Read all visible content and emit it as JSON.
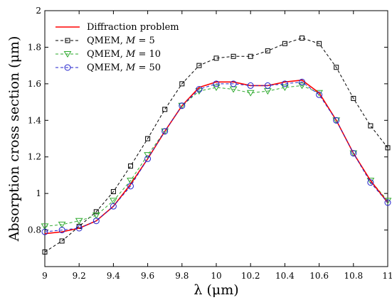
{
  "chart_data": {
    "type": "line",
    "xlabel": "λ (μm)",
    "ylabel": "Absorption cross section (μm)",
    "xlim": [
      9,
      11
    ],
    "ylim": [
      0.6,
      2.0
    ],
    "grid": false,
    "legend_position": "top-left",
    "x_ticks": [
      "9",
      "9.2",
      "9.4",
      "9.6",
      "9.8",
      "10",
      "10.2",
      "10.4",
      "10.6",
      "10.8",
      "11"
    ],
    "y_ticks": [
      "0.8",
      "1",
      "1.2",
      "1.4",
      "1.6",
      "1.8",
      "2"
    ],
    "series": [
      {
        "name": "Diffraction problem",
        "color": "#ff0000",
        "style": "solid",
        "marker": "none",
        "x": [
          9.0,
          9.1,
          9.2,
          9.3,
          9.4,
          9.5,
          9.6,
          9.7,
          9.8,
          9.9,
          10.0,
          10.1,
          10.2,
          10.3,
          10.4,
          10.5,
          10.6,
          10.7,
          10.8,
          10.9,
          11.0
        ],
        "y": [
          0.78,
          0.79,
          0.81,
          0.85,
          0.93,
          1.05,
          1.19,
          1.34,
          1.48,
          1.58,
          1.61,
          1.61,
          1.59,
          1.59,
          1.61,
          1.62,
          1.55,
          1.4,
          1.22,
          1.07,
          0.95
        ]
      },
      {
        "name": "QMEM, M = 5",
        "label_main": "QMEM, ",
        "label_var": "M",
        "label_value": " = 5",
        "color": "#000000",
        "style": "dashed",
        "marker": "square",
        "x": [
          9.0,
          9.1,
          9.2,
          9.3,
          9.4,
          9.5,
          9.6,
          9.7,
          9.8,
          9.9,
          10.0,
          10.1,
          10.2,
          10.3,
          10.4,
          10.5,
          10.6,
          10.7,
          10.8,
          10.9,
          11.0
        ],
        "y": [
          0.68,
          0.74,
          0.82,
          0.9,
          1.01,
          1.15,
          1.3,
          1.46,
          1.6,
          1.7,
          1.74,
          1.75,
          1.75,
          1.78,
          1.82,
          1.85,
          1.82,
          1.69,
          1.52,
          1.37,
          1.25
        ]
      },
      {
        "name": "QMEM, M = 10",
        "label_main": "QMEM, ",
        "label_var": "M",
        "label_value": " = 10",
        "color": "#2eaa2e",
        "style": "dashed",
        "marker": "triangle-down",
        "x": [
          9.0,
          9.1,
          9.2,
          9.3,
          9.4,
          9.5,
          9.6,
          9.7,
          9.8,
          9.9,
          10.0,
          10.1,
          10.2,
          10.3,
          10.4,
          10.5,
          10.6,
          10.7,
          10.8,
          10.9,
          11.0
        ],
        "y": [
          0.82,
          0.83,
          0.85,
          0.88,
          0.96,
          1.07,
          1.21,
          1.34,
          1.48,
          1.56,
          1.58,
          1.57,
          1.55,
          1.56,
          1.58,
          1.59,
          1.55,
          1.4,
          1.22,
          1.07,
          0.96
        ]
      },
      {
        "name": "QMEM, M = 50",
        "label_main": "QMEM, ",
        "label_var": "M",
        "label_value": " = 50",
        "color": "#2222cc",
        "style": "dashed",
        "marker": "circle",
        "x": [
          9.0,
          9.1,
          9.2,
          9.3,
          9.4,
          9.5,
          9.6,
          9.7,
          9.8,
          9.9,
          10.0,
          10.1,
          10.2,
          10.3,
          10.4,
          10.5,
          10.6,
          10.7,
          10.8,
          10.9,
          11.0
        ],
        "y": [
          0.79,
          0.8,
          0.81,
          0.85,
          0.93,
          1.04,
          1.19,
          1.34,
          1.48,
          1.57,
          1.6,
          1.6,
          1.59,
          1.59,
          1.6,
          1.61,
          1.54,
          1.4,
          1.22,
          1.06,
          0.95
        ]
      }
    ]
  }
}
